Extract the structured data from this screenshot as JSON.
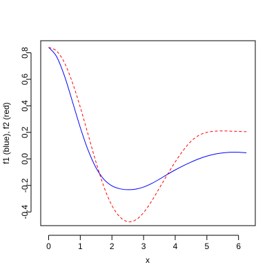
{
  "chart_data": {
    "type": "line",
    "title": "",
    "xlabel": "x",
    "ylabel": "f1 (blue), f2 (red)",
    "xlim": [
      -0.25,
      6.53
    ],
    "ylim": [
      -0.503,
      0.891
    ],
    "grid": false,
    "legend": "none",
    "x_ticks": [
      0,
      1,
      2,
      3,
      4,
      5,
      6
    ],
    "x_tick_labels": [
      "0",
      "1",
      "2",
      "3",
      "4",
      "5",
      "6"
    ],
    "y_ticks": [
      -0.4,
      -0.2,
      0.0,
      0.2,
      0.4,
      0.6,
      0.8
    ],
    "y_tick_labels": [
      "-0.4",
      "-0.2",
      "0.0",
      "0.2",
      "0.4",
      "0.6",
      "0.8"
    ],
    "x": [
      0,
      0.25,
      0.5,
      0.75,
      1,
      1.25,
      1.5,
      1.75,
      2,
      2.25,
      2.5,
      2.75,
      3,
      3.25,
      3.5,
      3.75,
      4,
      4.25,
      4.5,
      4.75,
      5,
      5.25,
      5.5,
      5.75,
      6,
      6.25
    ],
    "series": [
      {
        "color": "#0000ff",
        "dash": "solid",
        "values": [
          0.841,
          0.772,
          0.626,
          0.434,
          0.237,
          0.064,
          -0.068,
          -0.155,
          -0.203,
          -0.225,
          -0.232,
          -0.228,
          -0.212,
          -0.186,
          -0.153,
          -0.117,
          -0.083,
          -0.052,
          -0.024,
          0.001,
          0.021,
          0.036,
          0.045,
          0.05,
          0.05,
          0.046
        ]
      },
      {
        "color": "#ff0000",
        "dash": "dashed",
        "values": [
          0.841,
          0.814,
          0.725,
          0.577,
          0.39,
          0.182,
          -0.027,
          -0.212,
          -0.351,
          -0.437,
          -0.473,
          -0.46,
          -0.405,
          -0.32,
          -0.22,
          -0.119,
          -0.023,
          0.063,
          0.133,
          0.178,
          0.2,
          0.209,
          0.211,
          0.209,
          0.207,
          0.205
        ]
      }
    ]
  }
}
